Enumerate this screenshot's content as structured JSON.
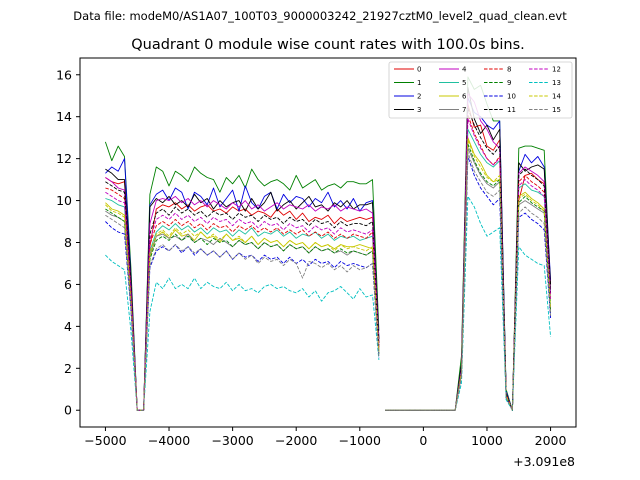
{
  "suptitle": "Data file: modeM0/AS1A07_100T03_9000003242_21927cztM0_level2_quad_clean.evt",
  "chart_data": {
    "type": "line",
    "title": "Quadrant 0 module wise count rates with 100.0s bins.",
    "xlabel": "",
    "ylabel": "",
    "x_offset_label": "+3.091e8",
    "xlim": [
      -5400,
      2400
    ],
    "ylim": [
      -0.8,
      16.8
    ],
    "xticks": [
      -5000,
      -4000,
      -3000,
      -2000,
      -1000,
      0,
      1000,
      2000
    ],
    "xtick_labels": [
      "−5000",
      "−4000",
      "−3000",
      "−2000",
      "−1000",
      "0",
      "1000",
      "2000"
    ],
    "yticks": [
      0,
      2,
      4,
      6,
      8,
      10,
      12,
      14,
      16
    ],
    "ytick_labels": [
      "0",
      "2",
      "4",
      "6",
      "8",
      "10",
      "12",
      "14",
      "16"
    ],
    "grid": false,
    "legend_position": "top-right",
    "x_start": -5000,
    "x_step": 100,
    "segments": [
      {
        "from": 0,
        "to": 43
      },
      {
        "from": 44,
        "to": 70
      }
    ],
    "series": [
      {
        "name": "0",
        "color": "#e00000",
        "dash": false,
        "values": [
          11.1,
          10.9,
          10.8,
          10.9,
          6.0,
          0,
          0,
          7.8,
          9.6,
          9.8,
          9.7,
          9.9,
          9.6,
          9.8,
          9.5,
          9.7,
          9.8,
          9.5,
          9.6,
          9.4,
          9.7,
          9.5,
          9.6,
          9.3,
          9.5,
          9.4,
          9.2,
          9.6,
          9.3,
          9.5,
          9.1,
          9.4,
          9.0,
          9.2,
          9.1,
          9.3,
          8.9,
          9.2,
          9.0,
          9.1,
          9.2,
          9.1,
          9.2,
          3.2,
          0,
          0,
          0,
          0,
          0,
          0,
          0,
          0,
          0,
          0,
          0,
          0,
          2.0,
          14.6,
          13.5,
          13.6,
          12.6,
          12.4,
          12.9,
          0.8,
          0,
          10.0,
          11.2,
          11.3,
          11.0,
          10.8,
          6.0
        ]
      },
      {
        "name": "1",
        "color": "#008000",
        "dash": false,
        "values": [
          12.8,
          11.9,
          12.6,
          12.1,
          6.8,
          0,
          0,
          10.3,
          11.6,
          11.4,
          10.7,
          11.4,
          11.2,
          10.9,
          11.6,
          11.3,
          11.1,
          11.0,
          10.4,
          11.1,
          10.8,
          11.2,
          10.6,
          11.5,
          11.0,
          10.7,
          10.9,
          11.0,
          10.8,
          10.5,
          11.2,
          10.6,
          10.8,
          11.0,
          10.5,
          10.7,
          10.8,
          10.6,
          10.9,
          10.9,
          10.8,
          10.8,
          11.0,
          3.8,
          0,
          0,
          0,
          0,
          0,
          0,
          0,
          0,
          0,
          0,
          0,
          0,
          2.6,
          15.9,
          15.3,
          15.5,
          14.6,
          13.8,
          13.8,
          1.0,
          0,
          12.5,
          12.6,
          12.6,
          12.5,
          12.4,
          5.8
        ]
      },
      {
        "name": "2",
        "color": "#0000e0",
        "dash": false,
        "values": [
          11.3,
          11.6,
          11.4,
          12.0,
          6.4,
          0,
          0,
          9.8,
          10.3,
          10.5,
          10.0,
          10.6,
          10.4,
          9.6,
          10.4,
          10.2,
          9.8,
          10.6,
          9.7,
          10.1,
          10.5,
          9.5,
          10.7,
          9.9,
          9.6,
          10.2,
          10.4,
          9.6,
          10.3,
          9.9,
          10.2,
          10.1,
          9.7,
          10.1,
          9.9,
          10.4,
          9.7,
          10.0,
          9.6,
          10.1,
          9.5,
          9.9,
          10.0,
          3.4,
          0,
          0,
          0,
          0,
          0,
          0,
          0,
          0,
          0,
          0,
          0,
          0,
          2.2,
          14.9,
          14.2,
          14.0,
          13.6,
          13.4,
          13.8,
          0.9,
          0,
          11.4,
          12.2,
          11.8,
          12.1,
          11.6,
          6.2
        ]
      },
      {
        "name": "3",
        "color": "#000000",
        "dash": false,
        "values": [
          11.5,
          11.3,
          11.0,
          11.0,
          6.3,
          0,
          0,
          9.7,
          10.1,
          9.9,
          10.2,
          9.8,
          10.0,
          9.7,
          10.3,
          9.9,
          10.1,
          9.6,
          10.0,
          9.7,
          9.9,
          10.0,
          9.5,
          10.1,
          9.6,
          9.9,
          10.4,
          9.5,
          9.8,
          10.0,
          9.6,
          9.9,
          10.2,
          9.7,
          9.8,
          9.5,
          9.9,
          9.7,
          10.0,
          9.6,
          9.8,
          9.8,
          9.9,
          3.4,
          0,
          0,
          0,
          0,
          0,
          0,
          0,
          0,
          0,
          0,
          0,
          0,
          2.2,
          15.4,
          13.9,
          13.2,
          13.6,
          12.9,
          13.4,
          0.8,
          0,
          11.8,
          11.4,
          11.6,
          11.7,
          11.5,
          6.0
        ]
      },
      {
        "name": "4",
        "color": "#c000c0",
        "dash": false,
        "values": [
          11.1,
          10.9,
          10.6,
          10.5,
          5.9,
          0,
          0,
          8.9,
          10.0,
          10.1,
          10.0,
          10.2,
          9.9,
          10.1,
          9.8,
          10.0,
          9.7,
          10.0,
          9.8,
          9.6,
          9.9,
          9.7,
          10.0,
          9.6,
          9.8,
          9.5,
          9.7,
          9.9,
          9.6,
          9.8,
          9.7,
          9.6,
          9.8,
          9.5,
          9.7,
          9.6,
          9.8,
          9.5,
          9.7,
          9.6,
          9.5,
          9.6,
          9.4,
          3.2,
          0,
          0,
          0,
          0,
          0,
          0,
          0,
          0,
          0,
          0,
          0,
          0,
          2.0,
          15.1,
          14.7,
          13.8,
          13.4,
          12.8,
          12.5,
          0.8,
          0,
          11.3,
          11.6,
          11.4,
          11.2,
          10.9,
          5.6
        ]
      },
      {
        "name": "5",
        "color": "#20c0a0",
        "dash": false,
        "values": [
          10.1,
          10.0,
          9.8,
          9.7,
          5.5,
          0,
          0,
          7.6,
          8.5,
          8.8,
          8.6,
          8.9,
          8.6,
          8.8,
          8.5,
          8.7,
          8.4,
          8.7,
          8.5,
          8.6,
          8.3,
          8.6,
          8.4,
          8.7,
          8.3,
          8.5,
          8.4,
          8.6,
          8.3,
          8.5,
          8.2,
          8.4,
          8.3,
          8.5,
          8.2,
          8.4,
          8.1,
          8.3,
          8.2,
          8.3,
          8.1,
          8.2,
          8.3,
          2.9,
          0,
          0,
          0,
          0,
          0,
          0,
          0,
          0,
          0,
          0,
          0,
          0,
          1.8,
          13.4,
          12.8,
          12.2,
          11.8,
          11.6,
          11.9,
          0.7,
          0,
          10.6,
          10.8,
          10.5,
          10.4,
          10.2,
          5.2
        ]
      },
      {
        "name": "6",
        "color": "#c8c800",
        "dash": false,
        "values": [
          9.9,
          9.6,
          9.5,
          9.3,
          5.3,
          0,
          0,
          7.3,
          8.3,
          8.5,
          8.2,
          8.6,
          8.3,
          8.4,
          8.1,
          8.5,
          8.2,
          8.3,
          8.0,
          8.4,
          8.1,
          8.2,
          8.0,
          8.3,
          7.9,
          8.2,
          8.0,
          8.1,
          7.8,
          8.1,
          7.9,
          8.0,
          7.7,
          8.0,
          7.8,
          7.9,
          7.7,
          7.9,
          7.8,
          7.8,
          7.9,
          7.8,
          7.7,
          2.8,
          0,
          0,
          0,
          0,
          0,
          0,
          0,
          0,
          0,
          0,
          0,
          0,
          1.7,
          13.0,
          12.2,
          11.8,
          11.2,
          10.9,
          11.0,
          0.7,
          0,
          10.2,
          10.4,
          10.1,
          9.9,
          9.6,
          4.8
        ]
      },
      {
        "name": "7",
        "color": "#808080",
        "dash": false,
        "values": [
          9.5,
          9.3,
          9.2,
          9.0,
          5.1,
          0,
          0,
          7.4,
          8.3,
          8.4,
          8.2,
          8.3,
          8.1,
          8.4,
          8.0,
          8.2,
          8.1,
          7.9,
          8.2,
          8.0,
          7.8,
          8.1,
          7.9,
          8.0,
          7.7,
          8.0,
          7.8,
          7.9,
          7.6,
          7.9,
          7.7,
          7.8,
          7.5,
          7.8,
          7.6,
          7.7,
          7.5,
          7.6,
          7.4,
          7.6,
          7.5,
          7.4,
          7.6,
          2.7,
          0,
          0,
          0,
          0,
          0,
          0,
          0,
          0,
          0,
          0,
          0,
          0,
          1.7,
          12.5,
          11.8,
          11.2,
          10.8,
          10.6,
          10.9,
          0.6,
          0,
          9.8,
          10.0,
          9.8,
          9.6,
          9.4,
          4.6
        ]
      },
      {
        "name": "8",
        "color": "#e00000",
        "dash": true,
        "values": [
          10.6,
          10.5,
          10.3,
          10.1,
          5.7,
          0,
          0,
          7.9,
          8.8,
          9.0,
          8.8,
          9.1,
          8.8,
          9.0,
          8.7,
          8.9,
          8.6,
          8.9,
          8.7,
          8.8,
          8.5,
          8.8,
          8.6,
          8.8,
          8.5,
          8.7,
          8.5,
          8.7,
          8.4,
          8.6,
          8.4,
          8.6,
          8.3,
          8.5,
          8.3,
          8.5,
          8.2,
          8.4,
          8.2,
          8.4,
          8.3,
          8.2,
          8.5,
          3.0,
          0,
          0,
          0,
          0,
          0,
          0,
          0,
          0,
          0,
          0,
          0,
          0,
          1.9,
          14.1,
          13.2,
          12.6,
          12.0,
          11.7,
          12.1,
          0.8,
          0,
          10.9,
          11.2,
          10.9,
          10.7,
          10.4,
          5.4
        ]
      },
      {
        "name": "9",
        "color": "#008000",
        "dash": true,
        "values": [
          9.6,
          9.4,
          9.2,
          9.0,
          5.0,
          0,
          0,
          7.2,
          8.1,
          8.3,
          8.1,
          8.4,
          8.1,
          8.3,
          8.0,
          8.2,
          7.9,
          8.2,
          8.0,
          8.1,
          7.8,
          8.1,
          7.9,
          8.0,
          7.7,
          8.0,
          7.8,
          7.9,
          7.6,
          7.9,
          7.7,
          7.8,
          7.5,
          7.8,
          7.6,
          7.7,
          7.5,
          7.7,
          7.5,
          7.6,
          7.5,
          7.4,
          7.6,
          2.7,
          0,
          0,
          0,
          0,
          0,
          0,
          0,
          0,
          0,
          0,
          0,
          0,
          1.7,
          12.7,
          11.9,
          11.3,
          10.9,
          10.7,
          11.0,
          0.6,
          0,
          9.9,
          10.2,
          9.9,
          9.7,
          9.5,
          4.7
        ]
      },
      {
        "name": "10",
        "color": "#0000e0",
        "dash": true,
        "values": [
          9.0,
          8.7,
          8.5,
          8.4,
          4.8,
          0,
          0,
          6.8,
          7.6,
          7.8,
          7.6,
          7.9,
          7.5,
          7.8,
          7.4,
          7.7,
          7.4,
          7.6,
          7.3,
          7.6,
          7.2,
          7.5,
          7.3,
          7.4,
          7.1,
          7.4,
          7.2,
          7.3,
          7.0,
          7.3,
          7.0,
          7.2,
          6.9,
          7.2,
          7.0,
          7.1,
          6.8,
          7.1,
          6.9,
          7.0,
          6.9,
          6.8,
          7.0,
          2.5,
          0,
          0,
          0,
          0,
          0,
          0,
          0,
          0,
          0,
          0,
          0,
          0,
          1.6,
          12.1,
          11.2,
          10.6,
          10.2,
          9.8,
          10.1,
          0.6,
          0,
          9.2,
          9.4,
          9.1,
          8.9,
          8.6,
          4.4
        ]
      },
      {
        "name": "11",
        "color": "#000000",
        "dash": true,
        "values": [
          10.9,
          10.7,
          10.5,
          10.4,
          5.8,
          0,
          0,
          8.4,
          9.4,
          9.6,
          9.3,
          9.7,
          9.4,
          9.6,
          9.3,
          9.5,
          9.2,
          9.5,
          9.3,
          9.4,
          9.1,
          9.4,
          9.2,
          9.3,
          9.0,
          9.3,
          9.1,
          9.2,
          8.9,
          9.2,
          9.0,
          9.1,
          8.8,
          9.1,
          8.9,
          9.0,
          8.7,
          9.0,
          8.8,
          8.9,
          8.9,
          8.8,
          9.0,
          3.1,
          0,
          0,
          0,
          0,
          0,
          0,
          0,
          0,
          0,
          0,
          0,
          0,
          2.0,
          14.4,
          13.6,
          13.0,
          12.5,
          12.2,
          12.6,
          0.8,
          0,
          11.2,
          11.5,
          11.2,
          11.0,
          10.7,
          5.6
        ]
      },
      {
        "name": "12",
        "color": "#c000c0",
        "dash": true,
        "values": [
          10.4,
          10.2,
          10.0,
          9.9,
          5.6,
          0,
          0,
          8.1,
          9.1,
          9.3,
          9.1,
          9.4,
          9.1,
          9.3,
          9.0,
          9.2,
          8.9,
          9.2,
          9.0,
          9.1,
          8.8,
          9.1,
          8.9,
          9.0,
          8.7,
          9.0,
          8.8,
          8.9,
          8.6,
          8.9,
          8.7,
          8.8,
          8.5,
          8.8,
          8.6,
          8.7,
          8.4,
          8.7,
          8.5,
          8.6,
          8.5,
          8.4,
          8.6,
          3.0,
          0,
          0,
          0,
          0,
          0,
          0,
          0,
          0,
          0,
          0,
          0,
          0,
          1.9,
          13.9,
          13.1,
          12.5,
          12.0,
          11.7,
          12.0,
          0.7,
          0,
          10.7,
          11.0,
          10.7,
          10.5,
          10.2,
          5.3
        ]
      },
      {
        "name": "13",
        "color": "#00c0c0",
        "dash": true,
        "values": [
          7.4,
          7.1,
          6.9,
          6.7,
          3.8,
          0,
          0,
          4.7,
          6.1,
          5.8,
          6.3,
          5.8,
          6.0,
          5.8,
          6.3,
          5.8,
          6.1,
          5.9,
          5.8,
          6.1,
          5.7,
          6.0,
          5.7,
          5.8,
          5.6,
          5.9,
          6.0,
          5.8,
          5.9,
          5.7,
          5.6,
          5.8,
          5.4,
          5.7,
          5.2,
          5.6,
          5.7,
          5.9,
          5.6,
          5.3,
          5.8,
          5.4,
          5.5,
          2.4,
          0,
          0,
          0,
          0,
          0,
          0,
          0,
          0,
          0,
          0,
          0,
          0,
          1.3,
          10.2,
          9.7,
          8.9,
          8.3,
          8.5,
          8.7,
          0.5,
          0,
          7.8,
          7.4,
          7.2,
          7.0,
          6.9,
          3.5
        ]
      },
      {
        "name": "14",
        "color": "#c8c800",
        "dash": true,
        "values": [
          9.8,
          9.5,
          9.4,
          9.2,
          5.2,
          0,
          0,
          7.5,
          8.4,
          8.6,
          8.3,
          8.7,
          8.4,
          8.6,
          8.3,
          8.5,
          8.2,
          8.4,
          8.1,
          8.4,
          8.1,
          8.3,
          8.0,
          8.3,
          7.9,
          8.2,
          8.0,
          8.1,
          7.8,
          8.1,
          7.9,
          8.0,
          7.7,
          8.0,
          7.8,
          7.9,
          7.6,
          7.9,
          7.7,
          7.8,
          7.7,
          7.6,
          7.8,
          2.8,
          0,
          0,
          0,
          0,
          0,
          0,
          0,
          0,
          0,
          0,
          0,
          0,
          1.8,
          12.9,
          12.1,
          11.6,
          11.1,
          10.9,
          11.2,
          0.7,
          0,
          10.1,
          10.3,
          10.0,
          9.8,
          9.5,
          4.9
        ]
      },
      {
        "name": "15",
        "color": "#808080",
        "dash": true,
        "values": [
          9.3,
          9.1,
          8.9,
          8.7,
          4.9,
          0,
          0,
          6.9,
          7.7,
          7.9,
          7.6,
          7.9,
          7.6,
          7.8,
          7.5,
          7.7,
          7.4,
          7.6,
          7.3,
          7.6,
          7.2,
          7.5,
          7.2,
          7.4,
          7.0,
          7.3,
          7.1,
          7.2,
          6.9,
          7.2,
          7.0,
          6.3,
          7.1,
          7.0,
          6.8,
          7.0,
          6.7,
          6.9,
          6.6,
          6.9,
          6.7,
          6.8,
          7.0,
          2.5,
          0,
          0,
          0,
          0,
          0,
          0,
          0,
          0,
          0,
          0,
          0,
          0,
          1.6,
          12.3,
          11.4,
          10.9,
          10.4,
          10.2,
          10.5,
          0.6,
          0,
          9.4,
          9.7,
          9.4,
          9.2,
          8.9,
          4.5
        ]
      }
    ]
  }
}
